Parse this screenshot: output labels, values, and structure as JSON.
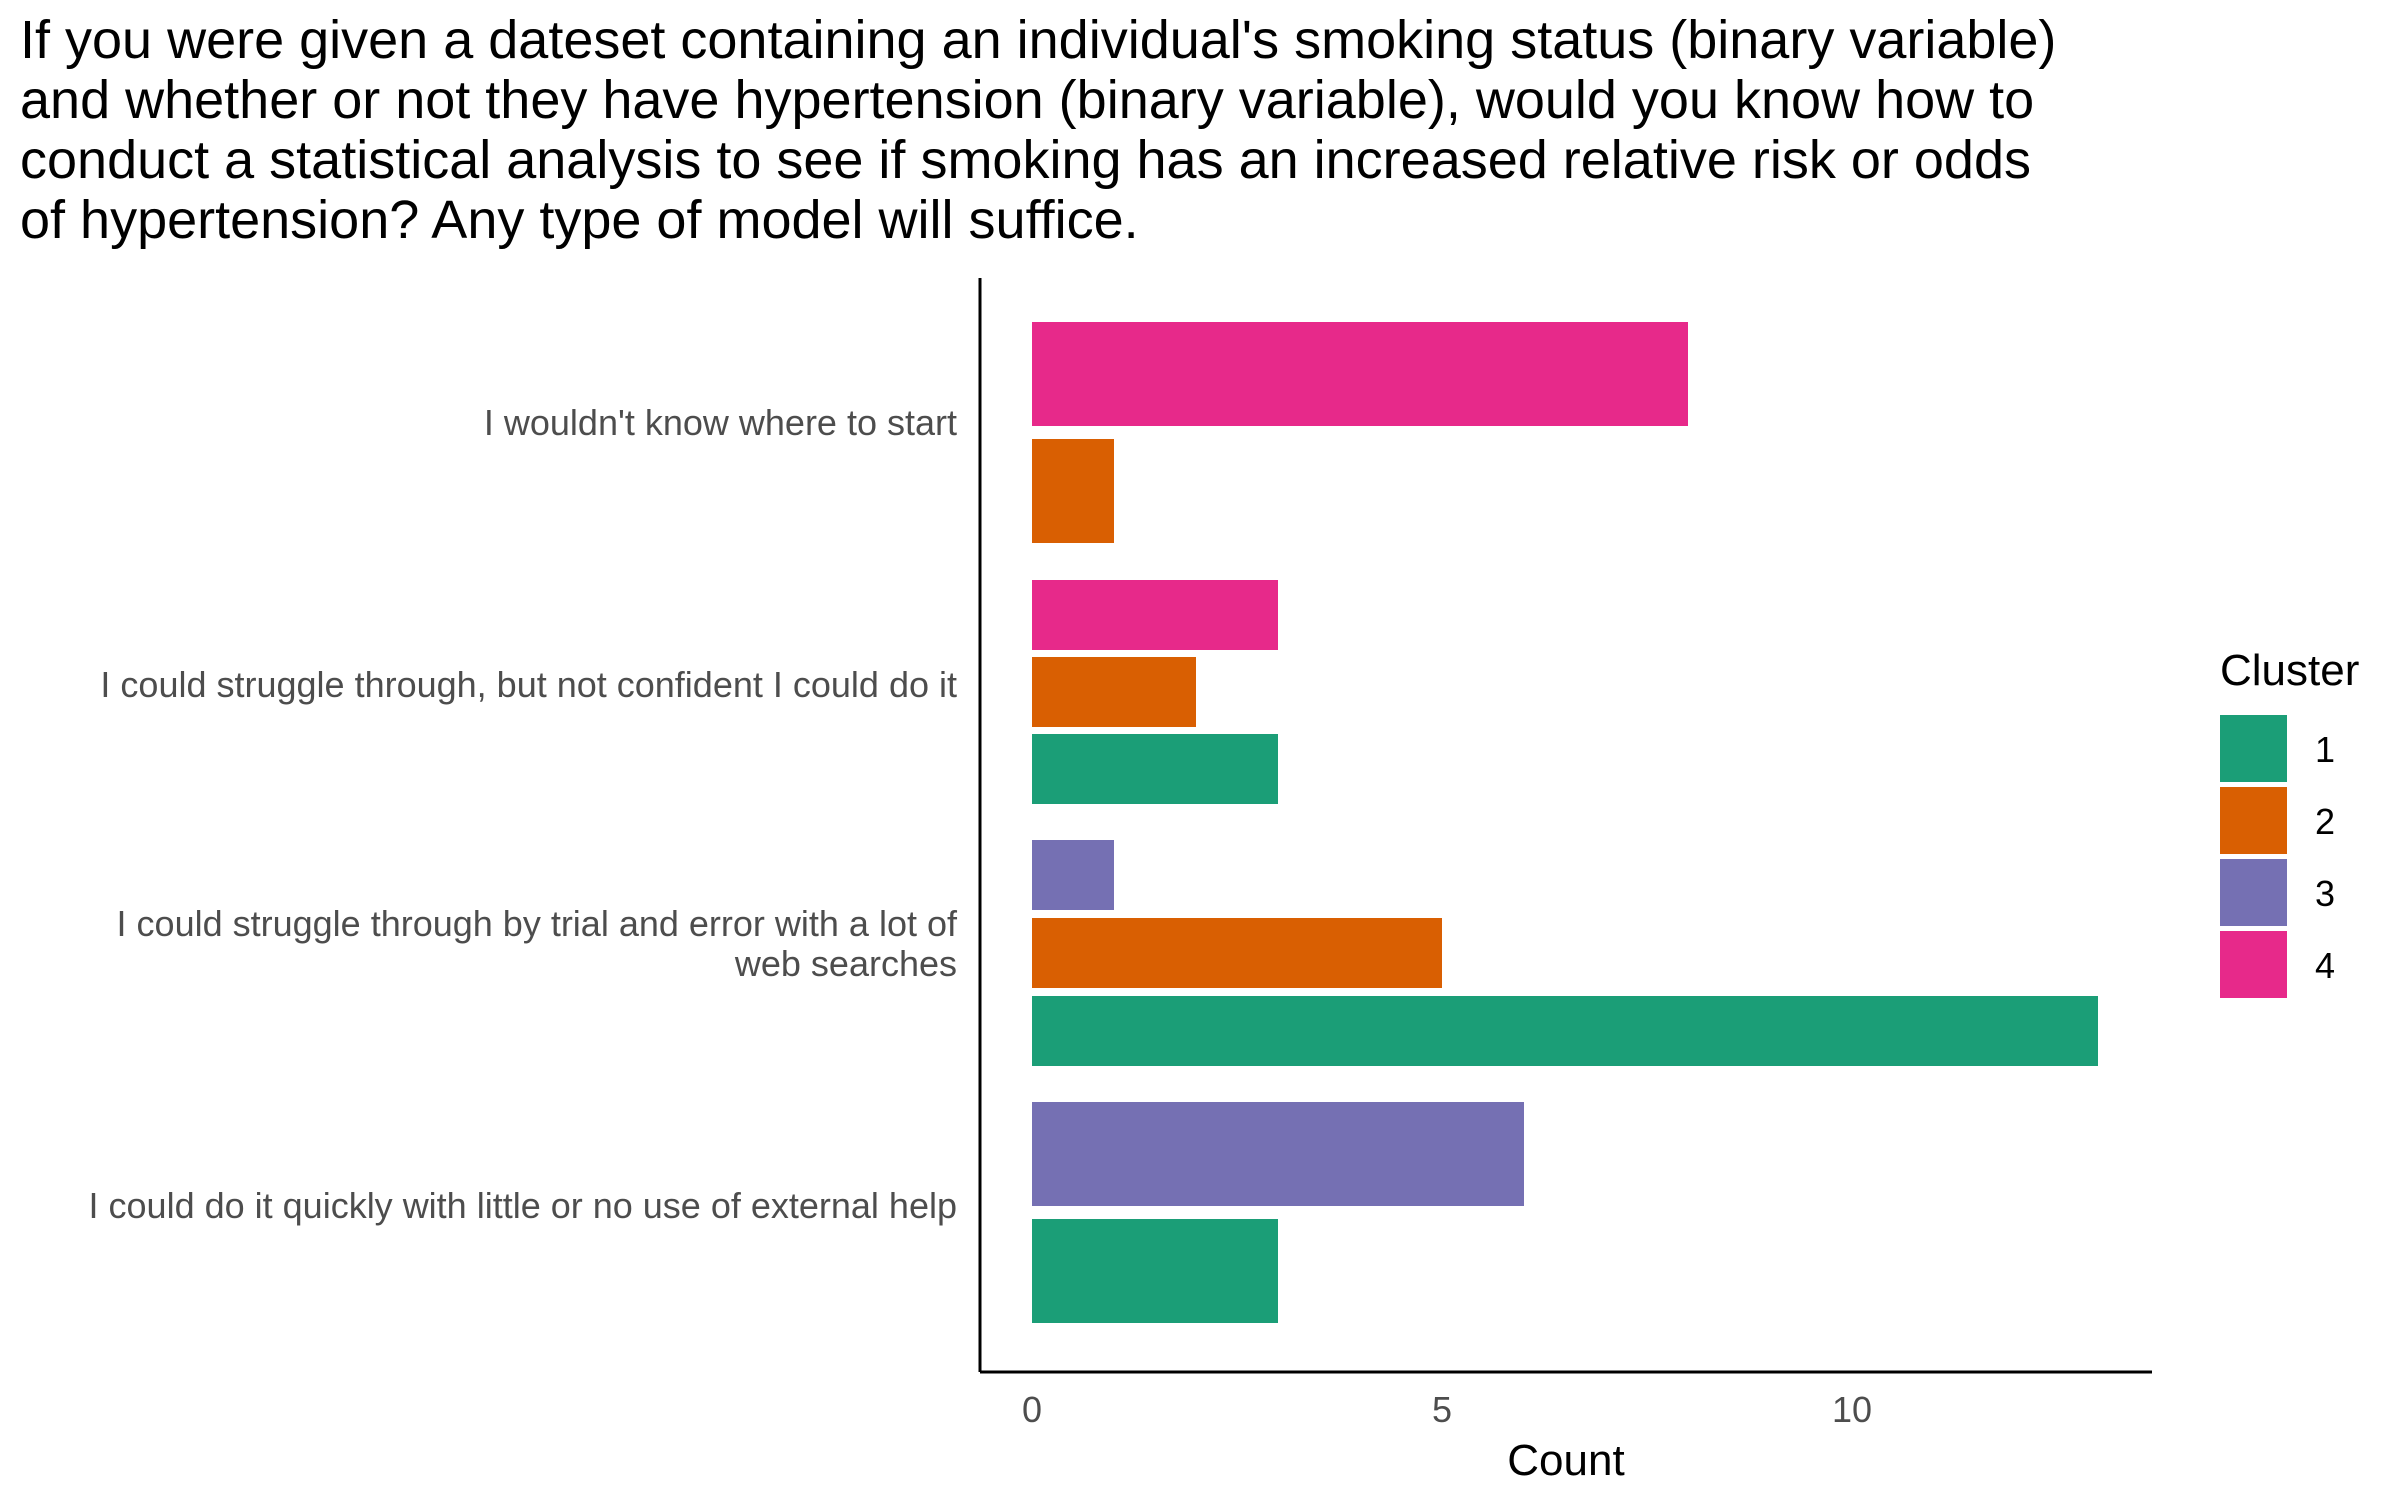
{
  "chart_data": {
    "type": "bar",
    "orientation": "horizontal",
    "title": "If you were given a dateset containing an individual's smoking status (binary variable) and whether or not they have hypertension (binary variable), would you know how to conduct a statistical analysis to see if smoking has an increased relative risk or odds of hypertension? Any type of model will suffice.",
    "xlabel": "Count",
    "ylabel": "",
    "xlim": [
      0,
      13.6
    ],
    "x_ticks": [
      0,
      5,
      10
    ],
    "grid": false,
    "legend": {
      "title": "Cluster",
      "placement": "right",
      "entries": [
        "1",
        "2",
        "3",
        "4"
      ]
    },
    "colors": {
      "1": "#1b9e77",
      "2": "#d95f02",
      "3": "#7570b3",
      "4": "#e7298a"
    },
    "categories": [
      "I wouldn't know where to start",
      "I could struggle through, but not confident I could do it",
      "I could struggle through by trial and error with a lot of web searches",
      "I could do it quickly with little or no use of external help"
    ],
    "category_lines": [
      [
        "I wouldn't know where to start"
      ],
      [
        "I could struggle through, but not confident I could do it"
      ],
      [
        "I could struggle through by trial and error with a lot of",
        "web searches"
      ],
      [
        "I could do it quickly with little or no use of external help"
      ]
    ],
    "bars": [
      {
        "category": "I wouldn't know where to start",
        "cluster": "4",
        "value": 8
      },
      {
        "category": "I wouldn't know where to start",
        "cluster": "2",
        "value": 1
      },
      {
        "category": "I could struggle through, but not confident I could do it",
        "cluster": "4",
        "value": 3
      },
      {
        "category": "I could struggle through, but not confident I could do it",
        "cluster": "2",
        "value": 2
      },
      {
        "category": "I could struggle through, but not confident I could do it",
        "cluster": "1",
        "value": 3
      },
      {
        "category": "I could struggle through by trial and error with a lot of web searches",
        "cluster": "3",
        "value": 1
      },
      {
        "category": "I could struggle through by trial and error with a lot of web searches",
        "cluster": "2",
        "value": 5
      },
      {
        "category": "I could struggle through by trial and error with a lot of web searches",
        "cluster": "1",
        "value": 13
      },
      {
        "category": "I could do it quickly with little or no use of external help",
        "cluster": "3",
        "value": 6
      },
      {
        "category": "I could do it quickly with little or no use of external help",
        "cluster": "1",
        "value": 3
      }
    ]
  }
}
